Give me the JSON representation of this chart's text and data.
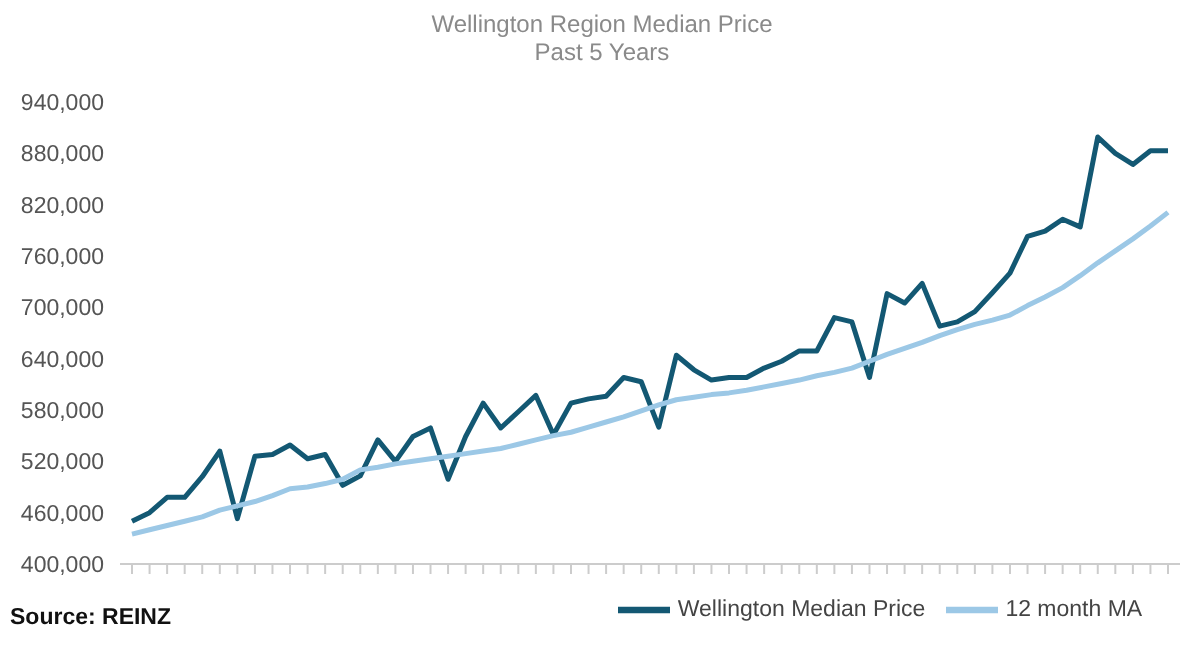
{
  "chart_data": {
    "type": "line",
    "title": "Wellington Region Median Price",
    "subtitle": "Past 5 Years",
    "categories": [
      null,
      null,
      null,
      null,
      null,
      null,
      null,
      null,
      null,
      null,
      null,
      null,
      null,
      null,
      null,
      null,
      null,
      null,
      null,
      null,
      null,
      null,
      null,
      null,
      null,
      null,
      null,
      null,
      null,
      null,
      null,
      null,
      null,
      null,
      null,
      null,
      null,
      null,
      null,
      null,
      null,
      null,
      null,
      null,
      null,
      null,
      null,
      null,
      null,
      null,
      null,
      null,
      null,
      null,
      null,
      null,
      null,
      null,
      null,
      null
    ],
    "series": [
      {
        "name": "Wellington Median Price",
        "color": "#135873",
        "values": [
          450000,
          460000,
          478000,
          478000,
          502000,
          532000,
          453000,
          526000,
          528000,
          539000,
          523000,
          528000,
          492000,
          503000,
          545000,
          520000,
          549000,
          559000,
          499000,
          549000,
          588000,
          559000,
          578000,
          597000,
          551000,
          588000,
          593000,
          596000,
          618000,
          613000,
          560000,
          644000,
          627000,
          615000,
          618000,
          618000,
          629000,
          637000,
          649000,
          649000,
          688000,
          683000,
          618000,
          716000,
          705000,
          728000,
          678000,
          683000,
          695000,
          717000,
          740000,
          783000,
          789000,
          803000,
          794000,
          899000,
          880000,
          867000,
          883000,
          883000
        ]
      },
      {
        "name": "12 month MA",
        "color": "#9cc8e6",
        "values": [
          435000,
          440000,
          445000,
          450000,
          455000,
          463000,
          468000,
          473000,
          480000,
          488000,
          490000,
          494000,
          499000,
          510000,
          513000,
          517000,
          520000,
          523000,
          526000,
          529000,
          532000,
          535000,
          540000,
          545000,
          550000,
          554000,
          560000,
          566000,
          572000,
          579000,
          586000,
          592000,
          595000,
          598000,
          600000,
          603000,
          607000,
          611000,
          615000,
          620000,
          624000,
          629000,
          637000,
          645000,
          652000,
          659000,
          667000,
          674000,
          680000,
          685000,
          691000,
          702000,
          712000,
          723000,
          737000,
          752000,
          766000,
          780000,
          795000,
          811000
        ]
      }
    ],
    "ylim": [
      400000,
      940000
    ],
    "yticks": [
      {
        "value": 400000,
        "label": "400,000"
      },
      {
        "value": 460000,
        "label": "460,000"
      },
      {
        "value": 520000,
        "label": "520,000"
      },
      {
        "value": 580000,
        "label": "580,000"
      },
      {
        "value": 640000,
        "label": "640,000"
      },
      {
        "value": 700000,
        "label": "700,000"
      },
      {
        "value": 760000,
        "label": "760,000"
      },
      {
        "value": 820000,
        "label": "820,000"
      },
      {
        "value": 880000,
        "label": "880,000"
      },
      {
        "value": 940000,
        "label": "940,000"
      }
    ],
    "grid": false,
    "legend": "bottom",
    "marker": "none",
    "line_style": "solid",
    "annotations": [
      "Source: REINZ"
    ]
  }
}
